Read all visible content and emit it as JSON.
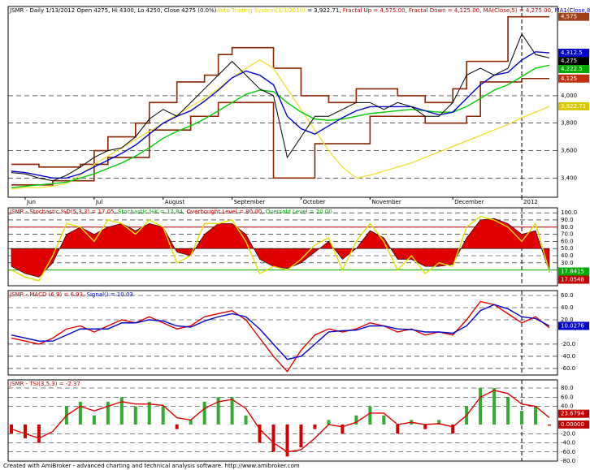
{
  "chart_data": [
    {
      "type": "line",
      "header": [
        {
          "text": "JSMR - Daily 1/13/2012 Open 4275, Hi 4300, Lo 4250, Close 4275 (0.0%)",
          "color": "#000000"
        },
        {
          "text": "Auto Trading System(3/3/2010)",
          "color": "#e6d800"
        },
        {
          "text": " = 3,922.71, ",
          "color": "#000000"
        },
        {
          "text": "Fractal Up = 4,575.00, ",
          "color": "#c00000"
        },
        {
          "text": "Fractal Down = 4,125.00, ",
          "color": "#c00000"
        },
        {
          "text": "MA(Close,5) = 4,275.00, ",
          "color": "#c00000"
        },
        {
          "text": "MA1(Close,8) = 4,312.50",
          "color": "#0000cc"
        }
      ],
      "categories": [
        null,
        "Jun",
        null,
        null,
        null,
        null,
        "Jul",
        null,
        null,
        null,
        null,
        "August",
        null,
        null,
        null,
        null,
        "September",
        null,
        null,
        null,
        null,
        "October",
        null,
        null,
        null,
        null,
        "November",
        null,
        null,
        null,
        null,
        null,
        "December",
        null,
        null,
        null,
        null,
        "2012",
        null,
        null
      ],
      "ylim": [
        3260,
        4650
      ],
      "yticks": [
        {
          "value": 3400,
          "label": "3,400"
        },
        {
          "value": 3600,
          "label": "3,600"
        },
        {
          "value": 3800,
          "label": "3,800"
        },
        {
          "value": 4000,
          "label": "4,000"
        }
      ],
      "series": [
        {
          "name": "Fractal Up",
          "color": "#8b2500",
          "style": "step",
          "values": [
            3500,
            3500,
            3480,
            3480,
            3480,
            3500,
            3600,
            3700,
            3700,
            3800,
            3950,
            3950,
            4100,
            4100,
            4150,
            4300,
            4350,
            4350,
            4350,
            4200,
            4200,
            4000,
            4000,
            3950,
            3950,
            4050,
            4050,
            4050,
            4000,
            4000,
            3950,
            3950,
            4050,
            4250,
            4250,
            4250,
            4575,
            4575,
            4575,
            4575
          ]
        },
        {
          "name": "Fractal Down",
          "color": "#8b2500",
          "style": "step",
          "values": [
            3350,
            3350,
            3350,
            3380,
            3380,
            3380,
            3500,
            3550,
            3550,
            3550,
            3750,
            3750,
            3750,
            3850,
            3850,
            3950,
            3950,
            3950,
            3950,
            3400,
            3400,
            3400,
            3650,
            3650,
            3650,
            3650,
            3850,
            3850,
            3850,
            3850,
            3800,
            3800,
            3800,
            3850,
            4100,
            4100,
            4100,
            4125,
            4125,
            4125
          ]
        },
        {
          "name": "Auto Trading System",
          "color": "#f0e040",
          "style": "line",
          "values": [
            3320,
            3330,
            3330,
            3340,
            3360,
            3420,
            3500,
            3560,
            3620,
            3680,
            3740,
            3800,
            3860,
            3920,
            3980,
            4050,
            4130,
            4200,
            4260,
            4200,
            4050,
            3900,
            3750,
            3600,
            3480,
            3400,
            3420,
            3450,
            3480,
            3510,
            3550,
            3590,
            3630,
            3670,
            3710,
            3750,
            3790,
            3840,
            3880,
            3922.71
          ]
        },
        {
          "name": "MA Long",
          "color": "#00cc00",
          "style": "line",
          "values": [
            3330,
            3340,
            3350,
            3360,
            3370,
            3400,
            3430,
            3470,
            3510,
            3560,
            3620,
            3690,
            3740,
            3780,
            3830,
            3890,
            3950,
            4010,
            4040,
            4030,
            3950,
            3880,
            3830,
            3820,
            3830,
            3850,
            3870,
            3880,
            3890,
            3900,
            3890,
            3880,
            3880,
            3920,
            3980,
            4040,
            4080,
            4140,
            4200,
            4222.5
          ]
        },
        {
          "name": "MA1(Close,8)",
          "color": "#0000cc",
          "style": "line",
          "values": [
            3450,
            3440,
            3420,
            3400,
            3400,
            3430,
            3480,
            3530,
            3580,
            3640,
            3720,
            3800,
            3850,
            3890,
            3960,
            4040,
            4130,
            4180,
            4150,
            4080,
            3850,
            3760,
            3720,
            3780,
            3840,
            3890,
            3920,
            3920,
            3920,
            3920,
            3890,
            3860,
            3880,
            3980,
            4080,
            4150,
            4170,
            4260,
            4320,
            4312.5
          ]
        },
        {
          "name": "Close",
          "color": "#000000",
          "style": "line",
          "values": [
            3440,
            3430,
            3400,
            3380,
            3420,
            3480,
            3550,
            3600,
            3620,
            3700,
            3830,
            3900,
            3850,
            3950,
            4050,
            4150,
            4250,
            4150,
            4050,
            4000,
            3550,
            3700,
            3850,
            3850,
            3900,
            3950,
            3950,
            3900,
            3950,
            3920,
            3850,
            3850,
            3950,
            4150,
            4200,
            4150,
            4200,
            4450,
            4300,
            4275
          ]
        }
      ],
      "boxes": [
        {
          "value": 4575,
          "label": "4,575",
          "color": "#a0401a"
        },
        {
          "value": 4312.5,
          "label": "4,312.5",
          "color": "#0000cc"
        },
        {
          "value": 4275,
          "label": "4,275",
          "color": "#000000"
        },
        {
          "value": 4222.5,
          "label": "4,222.5",
          "color": "#00aa00"
        },
        {
          "value": 4125,
          "label": "4,125",
          "color": "#c03010"
        },
        {
          "value": 3922.71,
          "label": "3,922.71",
          "color": "#d8c800"
        }
      ]
    },
    {
      "type": "line",
      "header": [
        {
          "text": "JSMR - Stochastic %D(5,3,3) = 17.05, ",
          "color": "#c00000"
        },
        {
          "text": "Stochastic %K = 17.84, ",
          "color": "#00aa00"
        },
        {
          "text": "Overbought Level = 80.00, ",
          "color": "#c00000"
        },
        {
          "text": "Oversold Level = 20.00",
          "color": "#00aa00"
        }
      ],
      "ylim": [
        -2,
        107
      ],
      "yticks": [
        {
          "value": 30,
          "label": "30.0"
        },
        {
          "value": 40,
          "label": "40.0"
        },
        {
          "value": 50,
          "label": "50.0"
        },
        {
          "value": 60,
          "label": "60.0"
        },
        {
          "value": 70,
          "label": "70.0"
        },
        {
          "value": 80,
          "label": "80.0"
        },
        {
          "value": 90,
          "label": "90.0"
        },
        {
          "value": 100,
          "label": "100.0"
        }
      ],
      "levels": [
        {
          "value": 80,
          "color": "#c00000"
        },
        {
          "value": 20,
          "color": "#00aa00"
        }
      ],
      "series": [
        {
          "name": "Stochastic %D",
          "color": "#e00000",
          "style": "fill",
          "values": [
            25,
            15,
            10,
            30,
            70,
            80,
            70,
            80,
            85,
            75,
            85,
            80,
            45,
            40,
            70,
            85,
            85,
            70,
            35,
            25,
            22,
            30,
            45,
            60,
            35,
            50,
            75,
            65,
            35,
            35,
            25,
            25,
            28,
            65,
            90,
            92,
            85,
            70,
            75,
            17.05
          ]
        },
        {
          "name": "Stochastic %K",
          "color": "#e0e000",
          "style": "line",
          "values": [
            20,
            10,
            5,
            40,
            85,
            80,
            60,
            90,
            85,
            70,
            90,
            80,
            30,
            40,
            85,
            85,
            90,
            60,
            15,
            25,
            20,
            35,
            55,
            65,
            20,
            60,
            85,
            60,
            20,
            40,
            15,
            30,
            25,
            80,
            95,
            90,
            80,
            60,
            85,
            17.84
          ]
        }
      ],
      "boxes": [
        {
          "value": 17.8415,
          "label": "17.8415",
          "color": "#00aa00"
        },
        {
          "value": 17.0548,
          "label": "17.0548",
          "color": "#c00000"
        }
      ]
    },
    {
      "type": "line",
      "header": [
        {
          "text": "JSMR - MACD (6,9) = 6.93, ",
          "color": "#c00000"
        },
        {
          "text": "Signal() = 10.03",
          "color": "#0000cc"
        }
      ],
      "ylim": [
        -70.7,
        68
      ],
      "yticks": [
        {
          "value": 60,
          "label": "60.0"
        },
        {
          "value": 40,
          "label": "40.0"
        },
        {
          "value": 20,
          "label": "20.0"
        },
        {
          "value": -20,
          "label": "-20.0"
        },
        {
          "value": -40,
          "label": "-40.0"
        },
        {
          "value": -60,
          "label": "-60.0"
        }
      ],
      "series": [
        {
          "name": "MACD",
          "color": "#e00000",
          "style": "line",
          "values": [
            -10,
            -15,
            -20,
            -10,
            5,
            10,
            0,
            10,
            20,
            15,
            25,
            15,
            5,
            10,
            25,
            30,
            35,
            20,
            -10,
            -40,
            -65,
            -30,
            -5,
            5,
            0,
            5,
            15,
            10,
            0,
            5,
            -5,
            0,
            -5,
            20,
            50,
            45,
            30,
            15,
            25,
            6.93
          ]
        },
        {
          "name": "Signal",
          "color": "#0000cc",
          "style": "line",
          "values": [
            -5,
            -10,
            -15,
            -15,
            -5,
            5,
            5,
            5,
            15,
            15,
            20,
            18,
            10,
            8,
            18,
            25,
            30,
            25,
            5,
            -20,
            -45,
            -40,
            -20,
            0,
            2,
            3,
            10,
            10,
            5,
            4,
            0,
            0,
            -2,
            10,
            35,
            45,
            38,
            25,
            22,
            10.03
          ]
        }
      ],
      "boxes": [
        {
          "value": 10.0276,
          "label": "10.0276",
          "color": "#0000cc"
        }
      ]
    },
    {
      "type": "line",
      "header": [
        {
          "text": "JSMR - TSI(3,5,3) = -2.37",
          "color": "#c00000"
        }
      ],
      "ylim": [
        -80,
        97.8
      ],
      "yticks": [
        {
          "value": 80,
          "label": "80.0"
        },
        {
          "value": 60,
          "label": "60.0"
        },
        {
          "value": 40,
          "label": "40.0"
        },
        {
          "value": -20,
          "label": "-20.0"
        },
        {
          "value": -40,
          "label": "-40.0"
        },
        {
          "value": -60,
          "label": "-60.0"
        },
        {
          "value": -80,
          "label": "-80.0"
        }
      ],
      "series": [
        {
          "name": "TSI",
          "color": "#33aa33",
          "style": "bar",
          "values": [
            -20,
            -30,
            -40,
            0,
            40,
            50,
            20,
            50,
            60,
            40,
            50,
            40,
            -10,
            10,
            50,
            60,
            60,
            20,
            -40,
            -60,
            -70,
            -50,
            -10,
            10,
            -20,
            20,
            40,
            20,
            -20,
            10,
            -10,
            10,
            -20,
            40,
            80,
            80,
            60,
            30,
            40,
            -2.37
          ]
        },
        {
          "name": "TSI Signal",
          "color": "#e00000",
          "style": "line",
          "values": [
            -10,
            -20,
            -30,
            -15,
            20,
            40,
            30,
            40,
            50,
            45,
            45,
            42,
            15,
            10,
            35,
            50,
            55,
            35,
            -10,
            -40,
            -60,
            -55,
            -30,
            0,
            -5,
            5,
            25,
            25,
            0,
            5,
            0,
            2,
            -5,
            20,
            60,
            75,
            68,
            45,
            40,
            15
          ]
        }
      ],
      "boxes": [
        {
          "value": 23.6794,
          "label": "23.6794",
          "color": "#c00000"
        },
        {
          "value": 0,
          "label": "0.00000",
          "color": "#c00000"
        }
      ]
    }
  ],
  "footer": "Created with AmiBroker - advanced charting and technical analysis software. http://www.amibroker.com"
}
